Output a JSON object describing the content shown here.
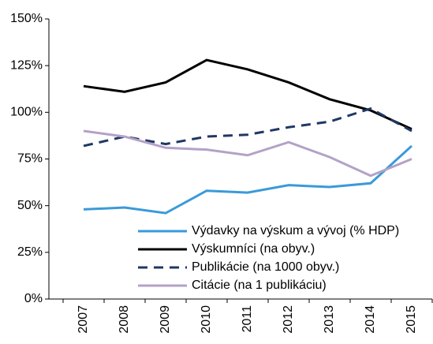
{
  "chart_data": {
    "type": "line",
    "categories": [
      "2007",
      "2008",
      "2009",
      "2010",
      "2011",
      "2012",
      "2013",
      "2014",
      "2015"
    ],
    "series": [
      {
        "name": "Výdavky na výskum a vývoj (% HDP)",
        "color": "#3a9ad9",
        "dash": false,
        "values": [
          48,
          49,
          46,
          58,
          57,
          61,
          60,
          62,
          82
        ]
      },
      {
        "name": "Výskumníci (na obyv.)",
        "color": "#000000",
        "dash": false,
        "values": [
          114,
          111,
          116,
          128,
          123,
          116,
          107,
          101,
          91
        ]
      },
      {
        "name": "Publikácie (na 1000 obyv.)",
        "color": "#1f3864",
        "dash": true,
        "values": [
          82,
          87,
          83,
          87,
          88,
          92,
          95,
          102,
          90
        ]
      },
      {
        "name": "Citácie (na 1 publikáciu)",
        "color": "#b3a2c7",
        "dash": false,
        "values": [
          90,
          87,
          81,
          80,
          77,
          84,
          76,
          66,
          75
        ]
      }
    ],
    "ylim": [
      0,
      150
    ],
    "yticks": [
      {
        "value": 0,
        "label": "0%"
      },
      {
        "value": 25,
        "label": "25%"
      },
      {
        "value": 50,
        "label": "50%"
      },
      {
        "value": 75,
        "label": "75%"
      },
      {
        "value": 100,
        "label": "100%"
      },
      {
        "value": 125,
        "label": "125%"
      },
      {
        "value": 150,
        "label": "150%"
      }
    ],
    "grid": false,
    "legend": "lower right"
  }
}
